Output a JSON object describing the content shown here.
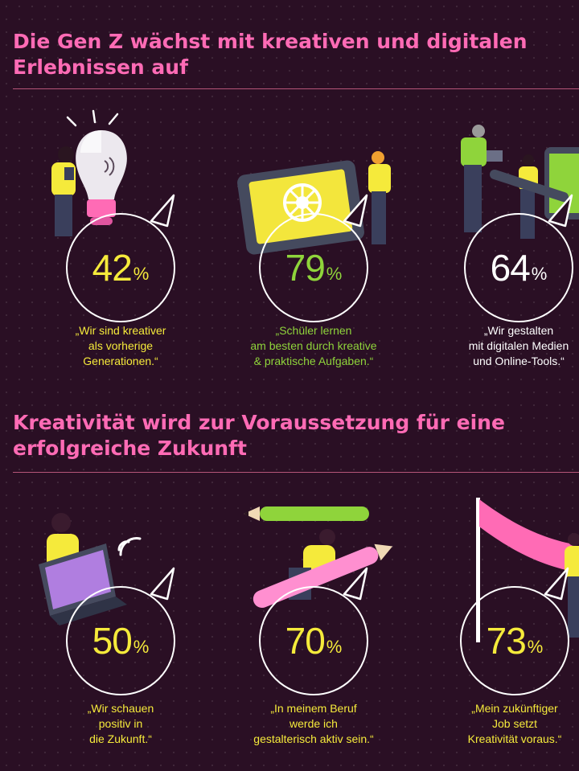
{
  "section1": {
    "heading": "Die Gen Z wächst mit kreativen und digitalen\nErlebnissen auf",
    "stats": [
      {
        "value": "42",
        "unit": "%",
        "color": "#f5ea3b",
        "caption": "„Wir sind kreativer\nals vorherige\nGenerationen.“",
        "illustration": "person-lightbulb-illustration"
      },
      {
        "value": "79",
        "unit": "%",
        "color": "#8fd43b",
        "caption": "„Schüler lernen\nam besten durch kreative\n& praktische Aufgaben.“",
        "illustration": "person-tablet-illustration"
      },
      {
        "value": "64",
        "unit": "%",
        "color": "#ffffff",
        "caption": "„Wir gestalten\nmit digitalen Medien\nund Online-Tools.“",
        "illustration": "people-screen-illustration"
      }
    ]
  },
  "section2": {
    "heading": "Kreativität wird zur Voraussetzung für eine\nerfolgreiche Zukunft",
    "stats": [
      {
        "value": "50",
        "unit": "%",
        "color": "#f5ea3b",
        "caption": "„Wir schauen\npositiv in\ndie Zukunft.“",
        "illustration": "person-laptop-illustration"
      },
      {
        "value": "70",
        "unit": "%",
        "color": "#f5ea3b",
        "caption": "„In meinem Beruf\nwerde ich\ngestalterisch aktiv sein.“",
        "illustration": "person-pencil-illustration"
      },
      {
        "value": "73",
        "unit": "%",
        "color": "#f5ea3b",
        "caption": "„Mein zukünftiger\nJob setzt\nKreativität voraus.“",
        "illustration": "person-banner-illustration"
      }
    ]
  }
}
